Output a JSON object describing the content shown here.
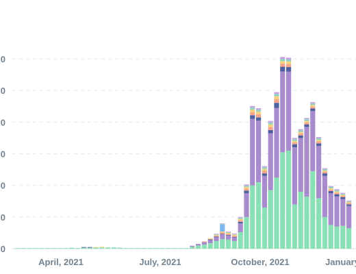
{
  "chart_data": {
    "type": "bar",
    "stacked": true,
    "title": "",
    "xlabel": "",
    "ylabel": "",
    "ylim": [
      0,
      600
    ],
    "grid": true,
    "legend": "none",
    "y_tick_labels": [
      "0",
      "0",
      "0",
      "0",
      "0",
      "0",
      "0"
    ],
    "x_tick_labels": [
      "April, 2021",
      "July, 2021",
      "October, 2021",
      "January"
    ],
    "series": [
      {
        "name": "",
        "color": "#88e0b4",
        "values": [
          2,
          2,
          2,
          2,
          2,
          2,
          2,
          2,
          2,
          3,
          2,
          3,
          3,
          4,
          4,
          4,
          4,
          3,
          2,
          2,
          2,
          2,
          2,
          2,
          2,
          2,
          2,
          2,
          2,
          6,
          10,
          13,
          17,
          24,
          30,
          29,
          24,
          52,
          100,
          200,
          210,
          130,
          185,
          225,
          305,
          310,
          140,
          180,
          165,
          245,
          160,
          100,
          75,
          70,
          72,
          65
        ]
      },
      {
        "name": "",
        "color": "#a88bcc",
        "values": [
          0,
          0,
          0,
          0,
          0,
          0,
          0,
          0,
          0,
          0,
          0,
          0,
          0,
          0,
          0,
          0,
          0,
          0,
          0,
          0,
          0,
          0,
          0,
          0,
          0,
          0,
          0,
          0,
          0,
          3,
          5,
          8,
          10,
          12,
          15,
          12,
          11,
          28,
          75,
          210,
          195,
          100,
          180,
          220,
          255,
          250,
          180,
          170,
          220,
          190,
          165,
          130,
          100,
          95,
          85,
          70
        ]
      },
      {
        "name": "",
        "color": "#4d5fa1",
        "values": [
          0,
          0,
          0,
          0,
          0,
          0,
          0,
          0,
          0,
          0,
          0,
          2,
          2,
          0,
          0,
          0,
          0,
          0,
          0,
          0,
          0,
          0,
          0,
          0,
          0,
          0,
          0,
          0,
          0,
          0,
          0,
          0,
          2,
          2,
          2,
          2,
          2,
          5,
          8,
          12,
          10,
          8,
          10,
          16,
          15,
          14,
          10,
          8,
          8,
          8,
          8,
          8,
          7,
          7,
          6,
          5
        ]
      },
      {
        "name": "",
        "color": "#f2a48c",
        "values": [
          0,
          0,
          0,
          0,
          0,
          0,
          0,
          0,
          0,
          0,
          0,
          0,
          0,
          0,
          0,
          0,
          0,
          0,
          0,
          0,
          0,
          0,
          0,
          0,
          0,
          0,
          0,
          0,
          0,
          0,
          0,
          2,
          2,
          3,
          4,
          4,
          4,
          5,
          7,
          10,
          10,
          8,
          10,
          12,
          10,
          10,
          6,
          6,
          6,
          6,
          6,
          5,
          5,
          5,
          4,
          4
        ]
      },
      {
        "name": "",
        "color": "#f6d27a",
        "values": [
          0,
          0,
          0,
          0,
          0,
          0,
          0,
          0,
          0,
          0,
          0,
          0,
          0,
          1,
          2,
          0,
          0,
          0,
          0,
          0,
          0,
          0,
          0,
          0,
          0,
          0,
          0,
          0,
          0,
          0,
          0,
          0,
          2,
          2,
          3,
          3,
          3,
          4,
          5,
          8,
          8,
          6,
          8,
          9,
          8,
          8,
          5,
          5,
          5,
          5,
          5,
          4,
          4,
          4,
          3,
          3
        ]
      },
      {
        "name": "",
        "color": "#7eb6f0",
        "values": [
          0,
          0,
          0,
          0,
          0,
          0,
          0,
          0,
          0,
          0,
          0,
          0,
          0,
          0,
          0,
          0,
          0,
          0,
          0,
          0,
          0,
          0,
          0,
          0,
          0,
          0,
          0,
          0,
          0,
          0,
          0,
          0,
          0,
          0,
          22,
          0,
          0,
          0,
          0,
          0,
          0,
          0,
          0,
          0,
          0,
          0,
          0,
          0,
          0,
          0,
          0,
          0,
          0,
          0,
          0,
          0
        ]
      },
      {
        "name": "",
        "color": "#8fd3c7",
        "values": [
          0,
          0,
          0,
          0,
          0,
          0,
          0,
          0,
          0,
          0,
          0,
          0,
          0,
          0,
          0,
          0,
          0,
          0,
          0,
          0,
          0,
          0,
          0,
          0,
          0,
          0,
          0,
          0,
          0,
          0,
          0,
          0,
          0,
          2,
          2,
          2,
          2,
          3,
          4,
          6,
          6,
          5,
          6,
          7,
          7,
          6,
          5,
          5,
          5,
          5,
          5,
          4,
          4,
          4,
          3,
          3
        ]
      },
      {
        "name": "",
        "color": "#c5a3e0",
        "values": [
          0,
          0,
          0,
          0,
          0,
          0,
          0,
          0,
          0,
          0,
          0,
          0,
          0,
          0,
          0,
          0,
          0,
          0,
          0,
          0,
          0,
          0,
          0,
          0,
          0,
          0,
          0,
          0,
          0,
          0,
          0,
          0,
          0,
          2,
          2,
          2,
          2,
          3,
          4,
          5,
          5,
          4,
          5,
          6,
          6,
          6,
          4,
          4,
          4,
          4,
          4,
          3,
          3,
          3,
          3,
          2
        ]
      }
    ]
  }
}
